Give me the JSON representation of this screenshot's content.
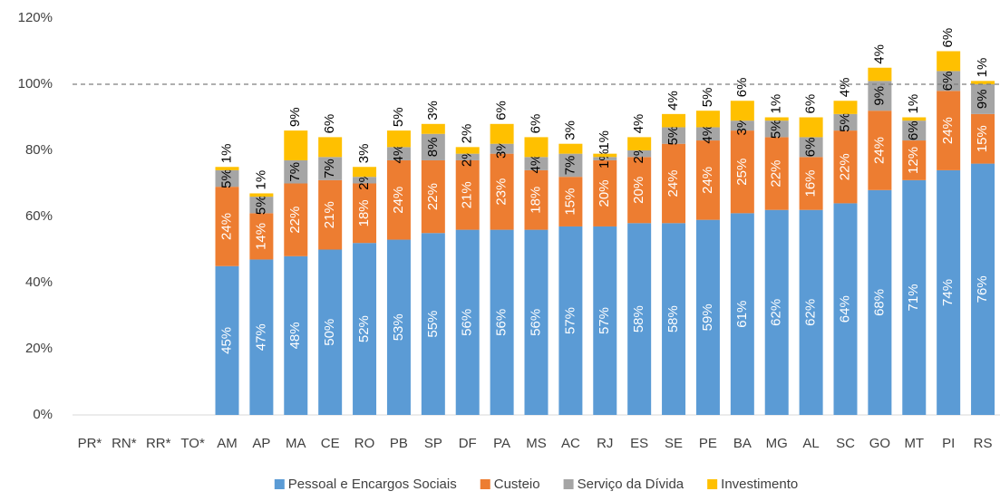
{
  "chart_data": {
    "type": "stacked_bar",
    "categories": [
      "PR*",
      "RN*",
      "RR*",
      "TO*",
      "AM",
      "AP",
      "MA",
      "CE",
      "RO",
      "PB",
      "SP",
      "DF",
      "PA",
      "MS",
      "AC",
      "RJ",
      "ES",
      "SE",
      "PE",
      "BA",
      "MG",
      "AL",
      "SC",
      "GO",
      "MT",
      "PI",
      "RS"
    ],
    "series": [
      {
        "name": "Pessoal e Encargos Sociais",
        "color": "#5b9bd5",
        "label_color": "#ffffff",
        "values": [
          null,
          null,
          null,
          null,
          45,
          47,
          48,
          50,
          52,
          53,
          55,
          56,
          56,
          56,
          57,
          57,
          58,
          58,
          59,
          61,
          62,
          62,
          64,
          68,
          71,
          74,
          76
        ],
        "value_labels": [
          null,
          null,
          null,
          null,
          "45%",
          "47%",
          "48%",
          "50%",
          "52%",
          "53%",
          "55%",
          "56%",
          "56%",
          "56%",
          "57%",
          "57%",
          "58%",
          "58%",
          "59%",
          "61%",
          "62%",
          "62%",
          "64%",
          "68%",
          "71%",
          "74%",
          "76%"
        ]
      },
      {
        "name": "Custeio",
        "color": "#ed7d31",
        "label_color": "#ffffff",
        "values": [
          null,
          null,
          null,
          null,
          24,
          14,
          22,
          21,
          18,
          24,
          22,
          21,
          23,
          18,
          15,
          20,
          20,
          24,
          24,
          25,
          22,
          16,
          22,
          24,
          12,
          24,
          15
        ],
        "value_labels": [
          null,
          null,
          null,
          null,
          "24%",
          "14%",
          "22%",
          "21%",
          "18%",
          "24%",
          "22%",
          "21%",
          "23%",
          "18%",
          "15%",
          "20%",
          "20%",
          "24%",
          "24%",
          "25%",
          "22%",
          "16%",
          "22%",
          "24%",
          "12%",
          "24%",
          "15%"
        ]
      },
      {
        "name": "Serviço da Dívida",
        "color": "#a5a5a5",
        "label_color": "#000000",
        "values": [
          null,
          null,
          null,
          null,
          5,
          5,
          7,
          7,
          2,
          4,
          8,
          2,
          3,
          4,
          7,
          1,
          2,
          5,
          4,
          3,
          5,
          6,
          5,
          9,
          6,
          6,
          9
        ],
        "value_labels": [
          null,
          null,
          null,
          null,
          "5%",
          "5%",
          "7%",
          "7%",
          "2%",
          "4%",
          "8%",
          "2%",
          "3%",
          "4%",
          "7%",
          "1%",
          "2%",
          "5%",
          "4%",
          "3%",
          "5%",
          "6%",
          "5%",
          "9%",
          "6%",
          "6%",
          "9%"
        ]
      },
      {
        "name": "Investimento",
        "color": "#ffc000",
        "label_color": "#000000",
        "values": [
          null,
          null,
          null,
          null,
          1,
          1,
          9,
          6,
          3,
          5,
          3,
          2,
          6,
          6,
          3,
          1,
          4,
          4,
          5,
          6,
          1,
          6,
          4,
          4,
          1,
          6,
          1
        ],
        "value_labels": [
          null,
          null,
          null,
          null,
          "1%",
          "1%",
          "9%",
          "6%",
          "3%",
          "5%",
          "3%",
          "2%",
          "6%",
          "6%",
          "3%",
          "1%",
          "4%",
          "4%",
          "5%",
          "6%",
          "1%",
          "6%",
          "4%",
          "4%",
          "1%",
          "6%",
          "1%"
        ]
      }
    ],
    "ylim": [
      0,
      120
    ],
    "yticks": [
      {
        "value": 0,
        "label": "0%"
      },
      {
        "value": 20,
        "label": "20%"
      },
      {
        "value": 40,
        "label": "40%"
      },
      {
        "value": 60,
        "label": "60%"
      },
      {
        "value": 80,
        "label": "80%"
      },
      {
        "value": 100,
        "label": "100%"
      },
      {
        "value": 120,
        "label": "120%"
      }
    ],
    "reference_line": 100,
    "legend": "bottom"
  }
}
